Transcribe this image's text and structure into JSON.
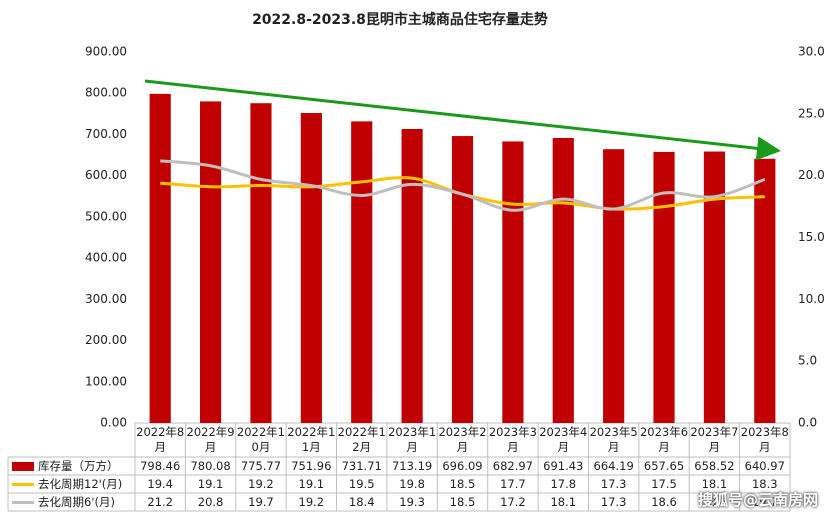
{
  "chart_data": {
    "type": "bar-line-table",
    "title": "2022.8-2023.8昆明市主城商品住宅存量走势",
    "categories": [
      "2022年8月",
      "2022年9月",
      "2022年10月",
      "2022年11月",
      "2022年12月",
      "2023年1月",
      "2023年2月",
      "2023年3月",
      "2023年4月",
      "2023年5月",
      "2023年6月",
      "2023年7月",
      "2023年8月"
    ],
    "series": [
      {
        "name": "库存量（万方）",
        "type": "bar",
        "color": "#c00000",
        "values": [
          798.46,
          780.08,
          775.77,
          751.96,
          731.71,
          713.19,
          696.09,
          682.97,
          691.43,
          664.19,
          657.65,
          658.52,
          640.97
        ]
      },
      {
        "name": "去化周期12'(月)",
        "type": "line",
        "axis": "y2",
        "color": "#ffc000",
        "values": [
          19.4,
          19.1,
          19.2,
          19.1,
          19.5,
          19.8,
          18.5,
          17.7,
          17.8,
          17.3,
          17.5,
          18.1,
          18.3
        ]
      },
      {
        "name": "去化周期6'(月)",
        "type": "line",
        "axis": "y2",
        "color": "#bfbfbf",
        "values": [
          21.2,
          20.8,
          19.7,
          19.2,
          18.4,
          19.3,
          18.5,
          17.2,
          18.1,
          17.3,
          18.6,
          18.3,
          19.7
        ]
      }
    ],
    "ylim": [
      0,
      900
    ],
    "yticks": [
      {
        "value": 0,
        "label": "0.00"
      },
      {
        "value": 100,
        "label": "100.00"
      },
      {
        "value": 200,
        "label": "200.00"
      },
      {
        "value": 300,
        "label": "300.00"
      },
      {
        "value": 400,
        "label": "400.00"
      },
      {
        "value": 500,
        "label": "500.00"
      },
      {
        "value": 600,
        "label": "600.00"
      },
      {
        "value": 700,
        "label": "700.00"
      },
      {
        "value": 800,
        "label": "800.00"
      },
      {
        "value": 900,
        "label": "900.00"
      }
    ],
    "y2lim": [
      0,
      30
    ],
    "y2ticks": [
      {
        "value": 0,
        "label": "0.0"
      },
      {
        "value": 5,
        "label": "5.0"
      },
      {
        "value": 10,
        "label": "10.0"
      },
      {
        "value": 15,
        "label": "15.0"
      },
      {
        "value": 20,
        "label": "20.0"
      },
      {
        "value": 25,
        "label": "25.0"
      },
      {
        "value": 30,
        "label": "30.0"
      }
    ],
    "watermark": "搜狐号@云南房网"
  }
}
